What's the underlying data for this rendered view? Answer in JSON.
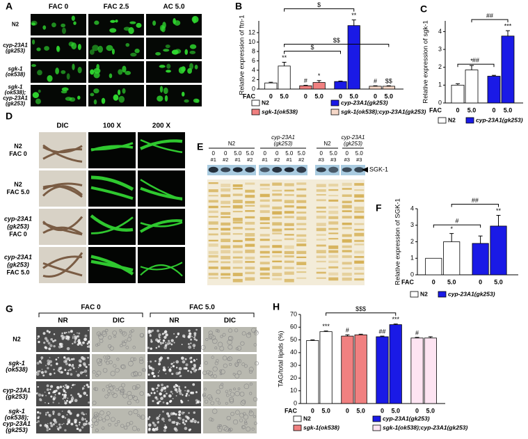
{
  "panels": {
    "A": {
      "label": "A",
      "columns": [
        "FAC 0",
        "FAC 2.5",
        "AC 5.0"
      ],
      "rows": [
        [
          "N2"
        ],
        [
          "cyp-23A1",
          "(gk253)"
        ],
        [
          "sgk-1",
          "(ok538)"
        ],
        [
          "sgk-1",
          "(ok538);",
          "cyp-23A1",
          "(gk253)"
        ]
      ]
    },
    "D": {
      "label": "D",
      "columns": [
        "DIC",
        "100 X",
        "200 X"
      ],
      "rows": [
        [
          "N2",
          "FAC 0"
        ],
        [
          "N2",
          "FAC 5.0"
        ],
        [
          "cyp-23A1",
          "(gk253)",
          "FAC 0"
        ],
        [
          "cyp-23A1",
          "(gk253)",
          "FAC 5.0"
        ]
      ]
    },
    "G": {
      "label": "G",
      "column_groups": [
        "FAC 0",
        "FAC 5.0"
      ],
      "columns": [
        "NR",
        "DIC",
        "NR",
        "DIC"
      ],
      "rows": [
        [
          "N2"
        ],
        [
          "sgk-1",
          "(ok538)"
        ],
        [
          "cyp-23A1",
          "(gk253)"
        ],
        [
          "sgk-1",
          "(ok538);",
          "cyp-23A1",
          "(gk253)"
        ]
      ]
    }
  },
  "blot": {
    "label": "E",
    "band": "SGK-1",
    "groups": [
      {
        "name": [
          "N2"
        ],
        "lanes": [
          "0",
          "0",
          "5.0",
          "5.0"
        ],
        "ids": [
          "#1",
          "#2",
          "#1",
          "#2"
        ]
      },
      {
        "name": [
          "cyp-23A1",
          "(gk253)"
        ],
        "lanes": [
          "0",
          "0",
          "5.0",
          "5.0"
        ],
        "ids": [
          "#1",
          "#2",
          "#1",
          "#2"
        ]
      },
      {
        "name": [
          "N2"
        ],
        "lanes": [
          "0",
          "5.0"
        ],
        "ids": [
          "#3",
          "#3"
        ]
      },
      {
        "name": [
          "cyp-23A1",
          "(gk253)"
        ],
        "lanes": [
          "0",
          "5.0"
        ],
        "ids": [
          "#3",
          "#3"
        ]
      }
    ]
  },
  "chart_data": [
    {
      "panel": "B",
      "type": "bar",
      "y_label": "Relative expression of ftn-1",
      "x_label": "FAC",
      "categories": [
        "0",
        "5.0"
      ],
      "ylim": [
        0,
        14.5
      ],
      "yticks": [
        0,
        2,
        4,
        6,
        8,
        10,
        12
      ],
      "series": [
        {
          "name": "N2",
          "color": "#ffffff",
          "values": [
            1.3,
            4.9
          ],
          "errors": [
            0.15,
            0.8
          ],
          "annotations": [
            null,
            "**"
          ]
        },
        {
          "name": "sgk-1(ok538)",
          "color": "#f08080",
          "values": [
            0.7,
            1.4
          ],
          "errors": [
            0.1,
            0.4
          ],
          "annotations": [
            "#",
            "*"
          ]
        },
        {
          "name": "cyp-23A1(gk253)",
          "color": "#1a1ae6",
          "values": [
            1.6,
            13.5
          ],
          "errors": [
            0.1,
            1.2
          ],
          "annotations": [
            null,
            "**"
          ]
        },
        {
          "name": "sgk-1(ok538);cyp-23A1(gk253)",
          "color": "#f6d8c8",
          "values": [
            0.6,
            0.6
          ],
          "errors": [
            0.1,
            0.1
          ],
          "annotations": [
            "#",
            "$$"
          ]
        }
      ],
      "comparisons": [
        {
          "label": "$",
          "from": [
            0,
            1
          ],
          "to": [
            2,
            1
          ]
        },
        {
          "label": "$",
          "from": [
            0,
            1
          ],
          "to": [
            2,
            0
          ]
        },
        {
          "label": "$$",
          "from": [
            0,
            1
          ],
          "to": [
            3,
            1
          ]
        }
      ]
    },
    {
      "panel": "C",
      "type": "bar",
      "y_label": "Relative expression of  sgk-1",
      "x_label": "FAC",
      "categories": [
        "0",
        "5.0"
      ],
      "ylim": [
        0,
        4.6
      ],
      "yticks": [
        0,
        1,
        2,
        3,
        4
      ],
      "series": [
        {
          "name": "N2",
          "color": "#ffffff",
          "values": [
            1.0,
            1.85
          ],
          "errors": [
            0.08,
            0.25
          ],
          "annotations": [
            null,
            "*"
          ]
        },
        {
          "name": "cyp-23A1(gk253)",
          "color": "#1a1ae6",
          "values": [
            1.5,
            3.75
          ],
          "errors": [
            0.05,
            0.3
          ],
          "annotations": [
            null,
            "***"
          ]
        }
      ],
      "comparisons": [
        {
          "label": "##",
          "from": [
            0,
            0
          ],
          "to": [
            1,
            0
          ]
        },
        {
          "label": "##",
          "from": [
            0,
            1
          ],
          "to": [
            1,
            1
          ]
        }
      ]
    },
    {
      "panel": "F",
      "type": "bar",
      "y_label": "Relative expression of  SGK-1",
      "x_label": "FAC",
      "categories": [
        "0",
        "5.0"
      ],
      "ylim": [
        0,
        4
      ],
      "yticks": [
        0,
        1,
        2,
        3,
        4
      ],
      "series": [
        {
          "name": "N2",
          "color": "#ffffff",
          "values": [
            1.0,
            2.0
          ],
          "errors": [
            null,
            0.5
          ],
          "annotations": [
            null,
            "*"
          ]
        },
        {
          "name": "cyp-23A1(gk253)",
          "color": "#1a1ae6",
          "values": [
            1.9,
            2.95
          ],
          "errors": [
            0.45,
            0.65
          ],
          "annotations": [
            null,
            "**"
          ]
        }
      ],
      "comparisons": [
        {
          "label": "#",
          "from": [
            0,
            0
          ],
          "to": [
            1,
            0
          ]
        },
        {
          "label": "##",
          "from": [
            0,
            1
          ],
          "to": [
            1,
            1
          ]
        }
      ]
    },
    {
      "panel": "H",
      "type": "bar",
      "y_label": "TAG/total lipids (%)",
      "x_label": "FAC",
      "categories": [
        "0",
        "5.0"
      ],
      "ylim": [
        0,
        70
      ],
      "yticks": [
        0,
        10,
        20,
        30,
        40,
        50,
        60,
        70
      ],
      "series": [
        {
          "name": "N2",
          "color": "#ffffff",
          "values": [
            49.5,
            56.5
          ],
          "errors": [
            0.5,
            0.5
          ],
          "annotations": [
            null,
            "***"
          ]
        },
        {
          "name": "sgk-1(ok538)",
          "color": "#f08080",
          "values": [
            53,
            54
          ],
          "errors": [
            1,
            0.5
          ],
          "annotations": [
            "#",
            null
          ]
        },
        {
          "name": "cyp-23A1(gk253)",
          "color": "#1a1ae6",
          "values": [
            52.5,
            62
          ],
          "errors": [
            0.5,
            0.5
          ],
          "annotations": [
            "##",
            "***"
          ]
        },
        {
          "name": "sgk-1(ok538);cyp-23A1(gk253)",
          "color": "#fde4f2",
          "values": [
            51.5,
            51.5
          ],
          "errors": [
            0.5,
            1
          ],
          "annotations": [
            "#",
            null
          ]
        }
      ],
      "comparisons": [
        {
          "label": "$$$",
          "from": [
            0,
            1
          ],
          "to": [
            2,
            1
          ]
        }
      ]
    }
  ]
}
